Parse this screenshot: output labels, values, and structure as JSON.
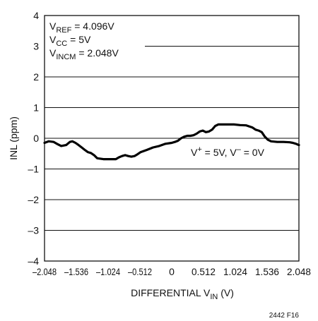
{
  "chart_data": {
    "type": "line",
    "xlabel": {
      "main": "DIFFERENTIAL V",
      "sub": "IN",
      "unit": " (V)"
    },
    "ylabel": "INL (ppm)",
    "xlim": [
      -2.048,
      2.048
    ],
    "ylim": [
      -4,
      4
    ],
    "x_ticks": [
      -2.048,
      -1.536,
      -1.024,
      -0.512,
      0,
      0.512,
      1.024,
      1.536,
      2.048
    ],
    "x_tick_labels": [
      "–2.048",
      "–1.536",
      "–1.024",
      "–0.512",
      "0",
      "0.512",
      "1.024",
      "1.536",
      "2.048"
    ],
    "y_ticks": [
      4,
      3,
      2,
      1,
      0,
      -1,
      -2,
      -3,
      -4
    ],
    "y_tick_labels": [
      "4",
      "3",
      "2",
      "1",
      "0",
      "–1",
      "–2",
      "–3",
      "–4"
    ],
    "grid": {
      "horizontal": true,
      "vertical": false
    },
    "series": [
      {
        "x": [
          -2.048,
          -1.98,
          -1.9,
          -1.85,
          -1.78,
          -1.7,
          -1.64,
          -1.6,
          -1.55,
          -1.5,
          -1.45,
          -1.4,
          -1.35,
          -1.3,
          -1.25,
          -1.2,
          -1.1,
          -1.0,
          -0.9,
          -0.85,
          -0.8,
          -0.75,
          -0.7,
          -0.65,
          -0.6,
          -0.55,
          -0.5,
          -0.4,
          -0.3,
          -0.2,
          -0.1,
          0.0,
          0.05,
          0.1,
          0.15,
          0.2,
          0.25,
          0.3,
          0.35,
          0.4,
          0.45,
          0.5,
          0.55,
          0.6,
          0.65,
          0.7,
          0.75,
          0.8,
          0.9,
          1.0,
          1.1,
          1.2,
          1.3,
          1.35,
          1.4,
          1.45,
          1.5,
          1.55,
          1.6,
          1.7,
          1.8,
          1.9,
          1.95,
          2.0,
          2.048
        ],
        "y": [
          -0.15,
          -0.1,
          -0.12,
          -0.18,
          -0.25,
          -0.22,
          -0.12,
          -0.1,
          -0.15,
          -0.22,
          -0.3,
          -0.38,
          -0.45,
          -0.48,
          -0.55,
          -0.65,
          -0.68,
          -0.68,
          -0.68,
          -0.62,
          -0.58,
          -0.55,
          -0.58,
          -0.6,
          -0.58,
          -0.52,
          -0.45,
          -0.38,
          -0.3,
          -0.25,
          -0.18,
          -0.15,
          -0.12,
          -0.08,
          0.0,
          0.05,
          0.08,
          0.08,
          0.1,
          0.15,
          0.22,
          0.25,
          0.2,
          0.22,
          0.28,
          0.4,
          0.45,
          0.45,
          0.45,
          0.45,
          0.43,
          0.42,
          0.35,
          0.28,
          0.25,
          0.2,
          0.05,
          -0.05,
          -0.1,
          -0.12,
          -0.12,
          -0.13,
          -0.15,
          -0.18,
          -0.22
        ]
      }
    ],
    "annotations": {
      "conditions": [
        {
          "main": "V",
          "sub": "REF",
          "rest": " = 4.096V"
        },
        {
          "main": "V",
          "sub": "CC",
          "rest": " = 5V"
        },
        {
          "main": "V",
          "sub": "INCM",
          "rest": " = 2.048V"
        }
      ],
      "supply": {
        "a_main": "V",
        "a_sup": "+",
        "a_rest": " = 5V, V",
        "b_sup": "–",
        "b_rest": " = 0V"
      }
    },
    "figure_id": "2442 F16"
  }
}
